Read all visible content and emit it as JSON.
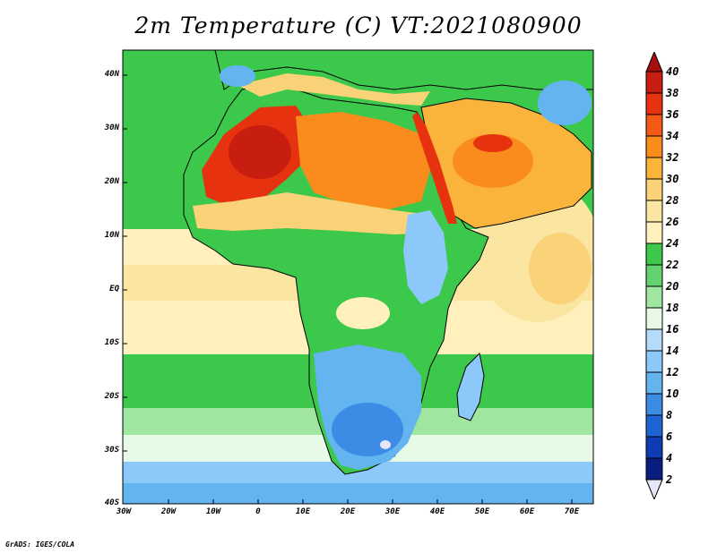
{
  "title": "2m Temperature (C) VT:2021080900",
  "credit": "GrADS: IGES/COLA",
  "map": {
    "lon_ticks": [
      "30W",
      "20W",
      "10W",
      "0",
      "10E",
      "20E",
      "30E",
      "40E",
      "50E",
      "60E",
      "70E"
    ],
    "lat_ticks": [
      "40N",
      "30N",
      "20N",
      "10N",
      "EQ",
      "10S",
      "20S",
      "30S",
      "40S"
    ]
  },
  "colorbar": {
    "levels": [
      "40",
      "38",
      "36",
      "34",
      "32",
      "30",
      "28",
      "26",
      "24",
      "22",
      "20",
      "18",
      "16",
      "14",
      "12",
      "10",
      "8",
      "6",
      "4",
      "2"
    ],
    "colors": [
      "#a50f0f",
      "#c81e0f",
      "#e6320f",
      "#f55a14",
      "#fa8c1e",
      "#fab43c",
      "#fad278",
      "#fae6a0",
      "#fff0be",
      "#3cc84b",
      "#64d26e",
      "#a0e6a0",
      "#e6fae6",
      "#b4dcfa",
      "#8cc8fa",
      "#64b4f0",
      "#3c8ce6",
      "#1e64d2",
      "#0f3cb4",
      "#0a1e82",
      "#e6e6fa"
    ]
  },
  "legend_colors": {
    "ocean_tropic": "#fae6a0",
    "ocean_warm": "#fff0be",
    "ocean_mid": "#3cc84b",
    "ocean_cool": "#a0e6a0",
    "ocean_cold": "#e6fae6",
    "ocean_south": "#8cc8fa",
    "ocean_far_south": "#64b4f0"
  }
}
